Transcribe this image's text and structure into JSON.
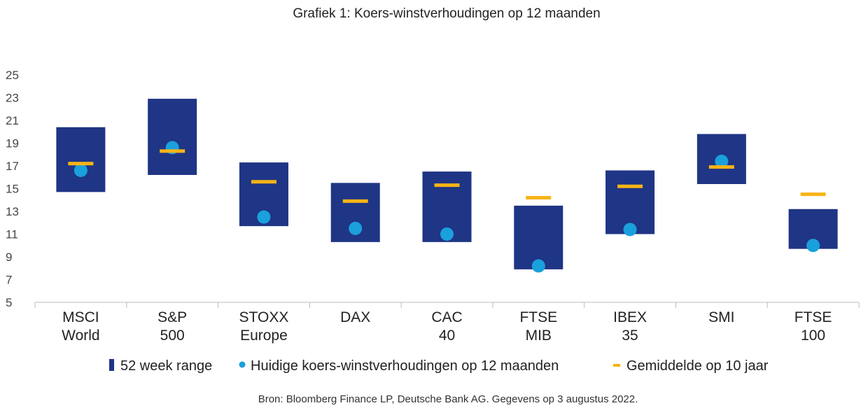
{
  "chart_data": {
    "type": "range-bar",
    "title": "Grafiek 1: Koers-winstverhoudingen op 12 maanden",
    "source": "Bron: Bloomberg Finance LP, Deutsche Bank AG. Gegevens op 3 augustus 2022.",
    "ylim": [
      5,
      25
    ],
    "yticks": [
      5,
      7,
      9,
      11,
      13,
      15,
      17,
      19,
      21,
      23,
      25
    ],
    "grid": false,
    "legend_position": "bottom",
    "categories": [
      [
        "MSCI",
        "World"
      ],
      [
        "S&P",
        "500"
      ],
      [
        "STOXX",
        "Europe"
      ],
      [
        "DAX"
      ],
      [
        "CAC",
        "40"
      ],
      [
        "FTSE",
        "MIB"
      ],
      [
        "IBEX",
        "35"
      ],
      [
        "SMI"
      ],
      [
        "FTSE",
        "100"
      ]
    ],
    "series": [
      {
        "name": "52 week range",
        "kind": "range",
        "color": "#1f3585",
        "low": [
          14.7,
          16.2,
          11.7,
          10.3,
          10.3,
          7.9,
          11.0,
          15.4,
          9.7
        ],
        "high": [
          20.4,
          22.9,
          17.3,
          15.5,
          16.5,
          13.5,
          16.6,
          19.8,
          13.2
        ]
      },
      {
        "name": "Huidige koers-winstverhoudingen op 12 maanden",
        "kind": "point",
        "color": "#1aa0dc",
        "values": [
          16.6,
          18.6,
          12.5,
          11.5,
          11.0,
          8.2,
          11.4,
          17.4,
          10.0
        ]
      },
      {
        "name": "Gemiddelde op 10 jaar",
        "kind": "dash",
        "color": "#f7b416",
        "values": [
          17.2,
          18.3,
          15.6,
          13.9,
          15.3,
          14.2,
          15.2,
          16.9,
          14.5
        ]
      }
    ]
  }
}
